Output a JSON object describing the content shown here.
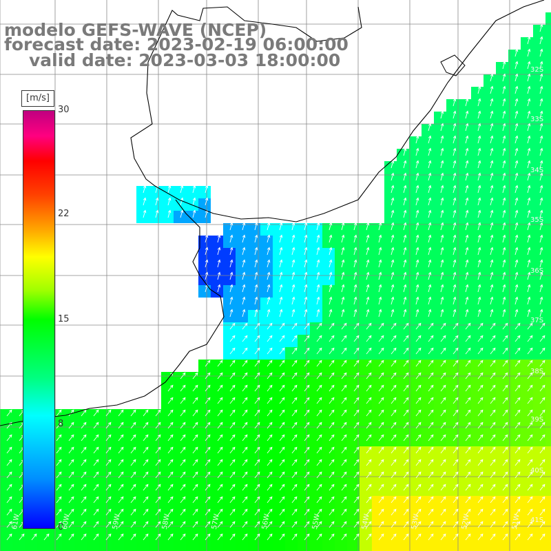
{
  "title": {
    "line1": "modelo GEFS-WAVE (NCEP)",
    "line2": "forecast date: 2023-02-19 06:00:00",
    "line3": "valid date: 2023-03-03 18:00:00"
  },
  "colorbar": {
    "unit": "[m/s]",
    "ticks": [
      "30",
      "22",
      "15",
      "8",
      "0"
    ],
    "stops": [
      "#0000ff",
      "#00ffff",
      "#00ff00",
      "#ffff00",
      "#ff0000",
      "#c00080"
    ]
  },
  "axes": {
    "lon_labels": [
      "61W",
      "60W",
      "59W",
      "58W",
      "57W",
      "56W",
      "55W",
      "54W",
      "53W",
      "52W",
      "51W"
    ],
    "lat_labels": [
      "32S",
      "33S",
      "34S",
      "35S",
      "36S",
      "37S",
      "38S",
      "39S",
      "40S",
      "41S"
    ]
  },
  "map": {
    "variable": "wind speed with direction arrows",
    "land_color": "#ffffff",
    "coast_color": "#000000",
    "grid_color": "#888888",
    "arrow_color": "#ffffff"
  }
}
